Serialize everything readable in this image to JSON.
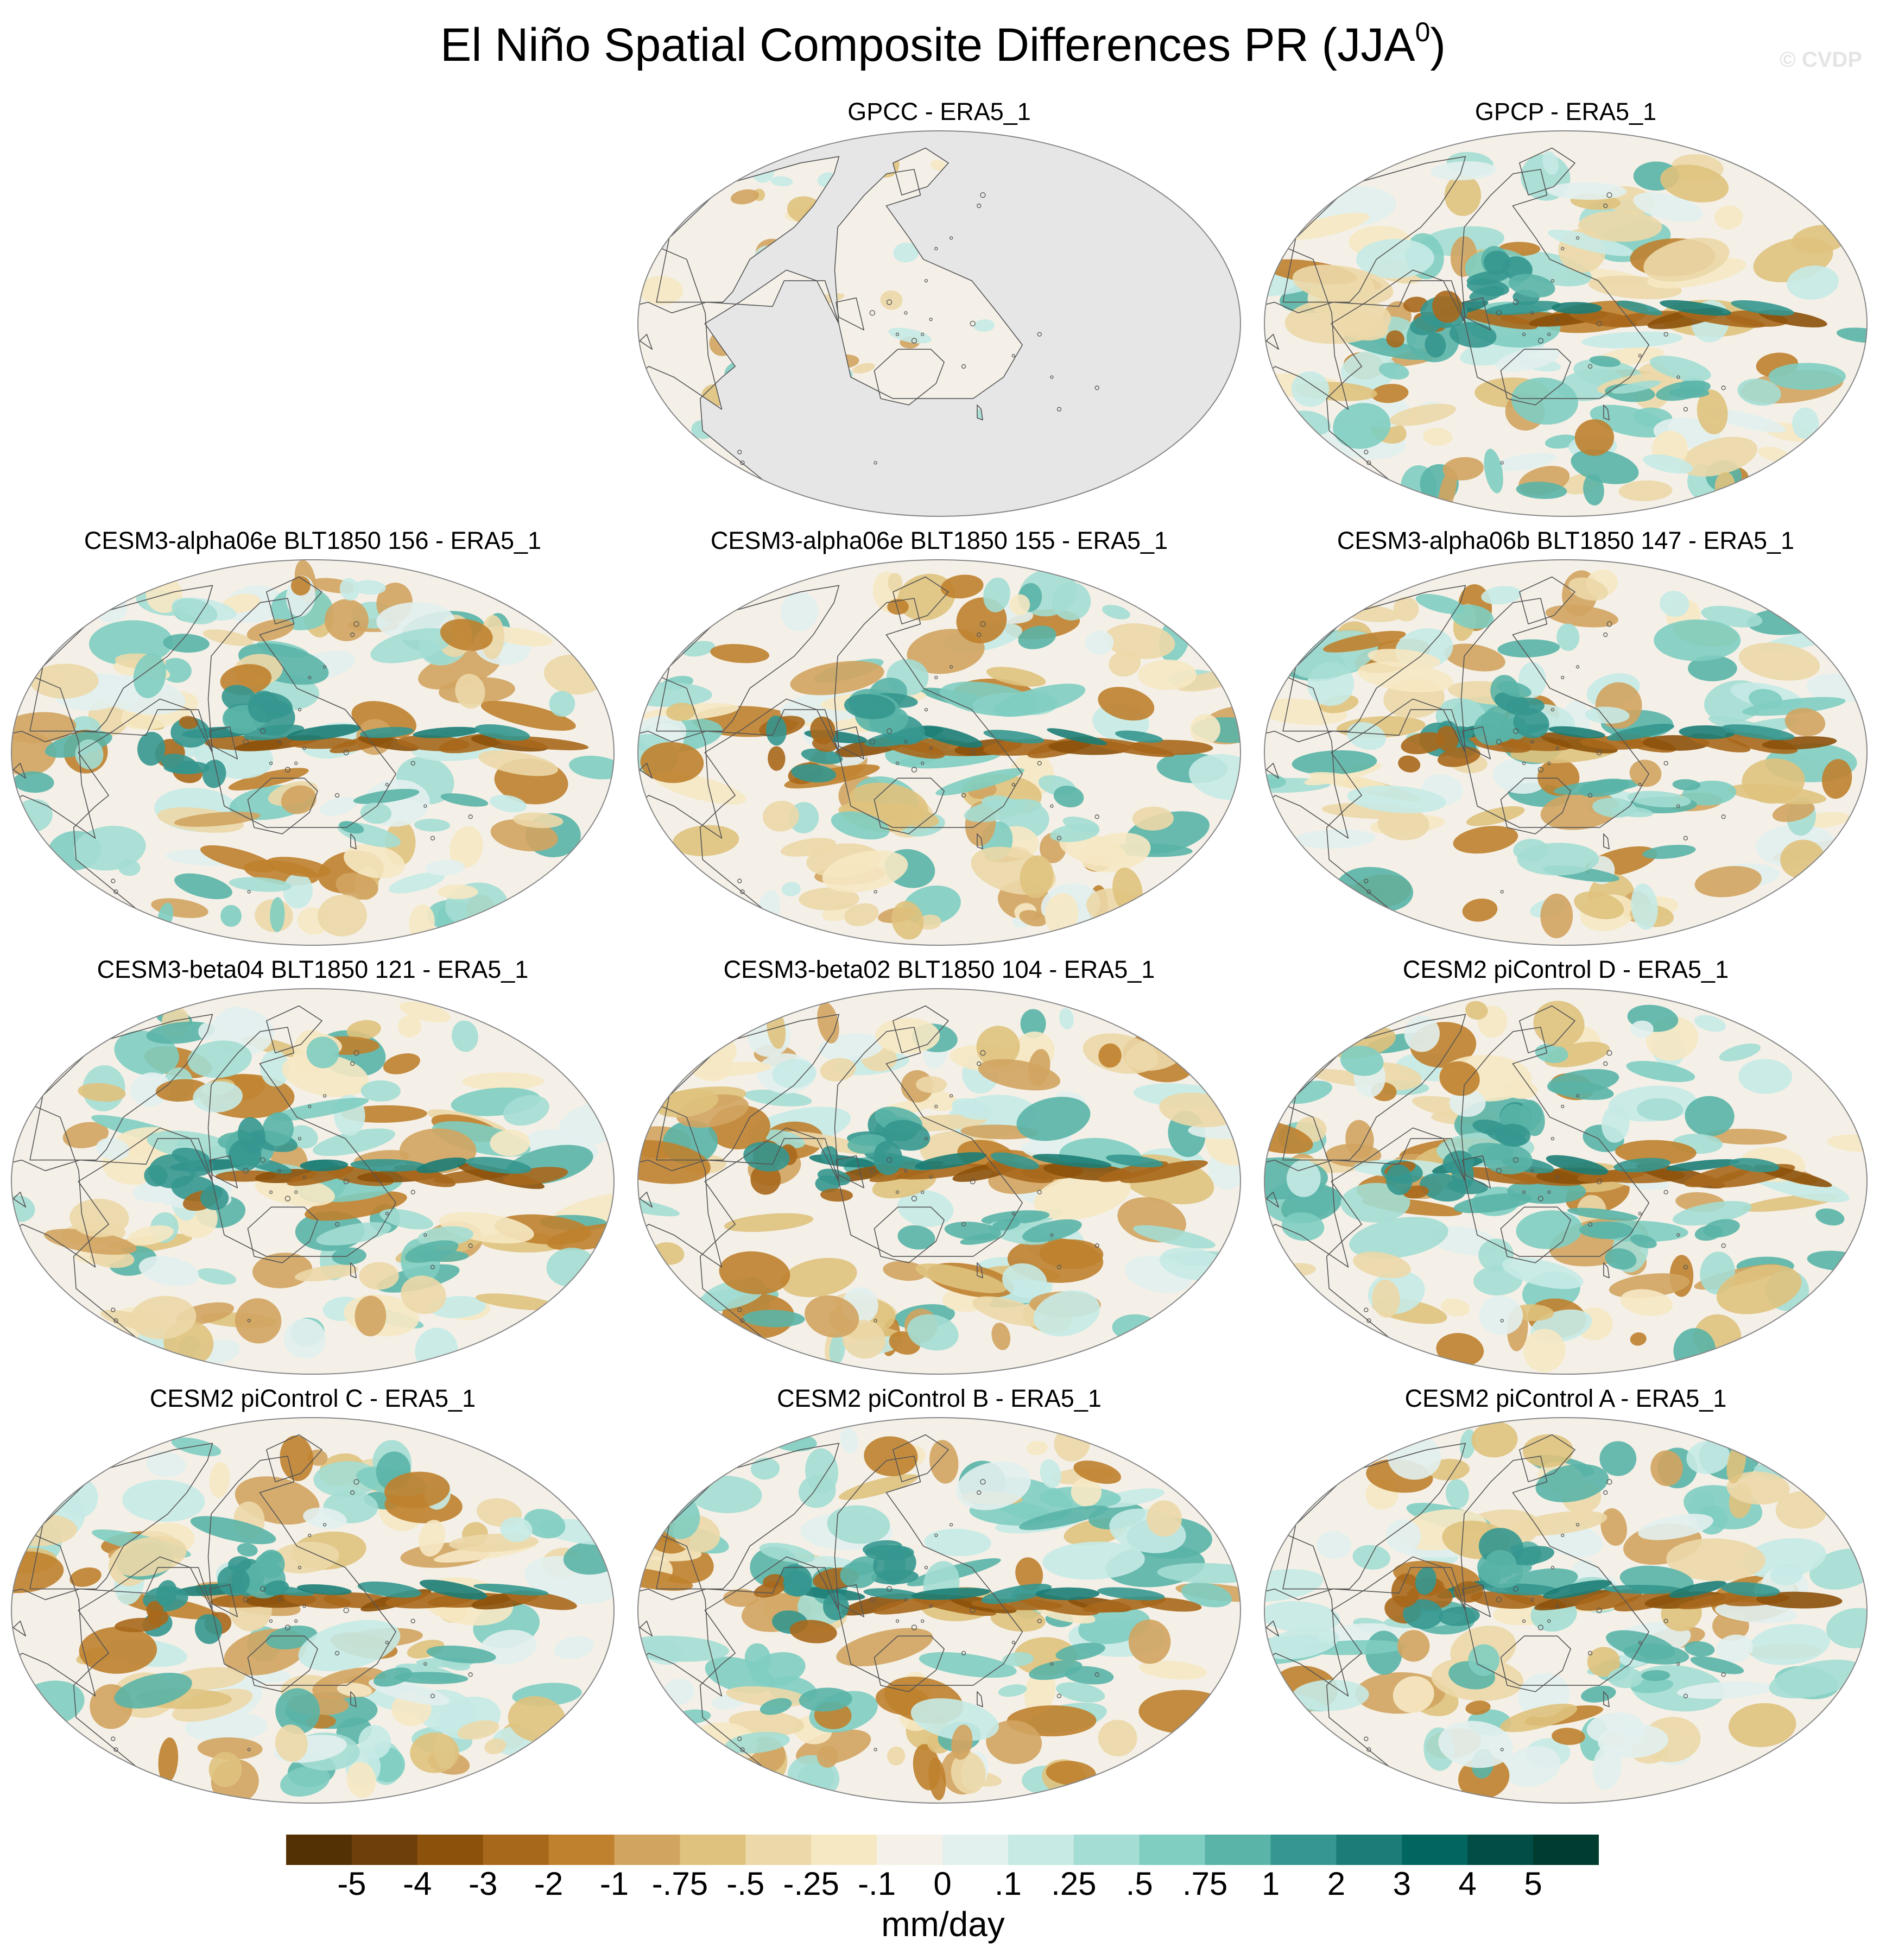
{
  "title": "El Niño Spatial Composite Differences PR (JJA",
  "title_superscript": "0",
  "title_suffix": ")",
  "watermark": "© CVDP",
  "units": "mm/day",
  "colors": {
    "land_mask": "#e6e6e6",
    "coastline": "#555555",
    "map_outline": "#888888",
    "ocean_neutral": "#f4f0e8"
  },
  "colorbar": {
    "colors": [
      "#543005",
      "#6f3f0b",
      "#8c510a",
      "#a8681c",
      "#bf812d",
      "#d1a460",
      "#dfc27d",
      "#ecd8a8",
      "#f6e8c3",
      "#f5f1e8",
      "#e2f0ee",
      "#c7eae5",
      "#a4ddd3",
      "#80cdc1",
      "#5ab4a7",
      "#35978f",
      "#1c7d76",
      "#01665e",
      "#024d46",
      "#003c30"
    ],
    "labels": [
      "-5",
      "-4",
      "-3",
      "-2",
      "-1",
      "-.75",
      "-.5",
      "-.25",
      "-.1",
      "0",
      ".1",
      ".25",
      ".5",
      ".75",
      "1",
      "2",
      "3",
      "4",
      "5"
    ]
  },
  "panels": [
    {
      "title": "GPCC - ERA5_1",
      "land_only": true
    },
    {
      "title": "GPCP - ERA5_1",
      "land_only": false
    },
    {
      "title": "CESM3-alpha06e BLT1850 156 - ERA5_1",
      "land_only": false
    },
    {
      "title": "CESM3-alpha06e BLT1850 155 - ERA5_1",
      "land_only": false
    },
    {
      "title": "CESM3-alpha06b BLT1850 147 - ERA5_1",
      "land_only": false
    },
    {
      "title": "CESM3-beta04 BLT1850 121 - ERA5_1",
      "land_only": false
    },
    {
      "title": "CESM3-beta02 BLT1850 104 - ERA5_1",
      "land_only": false
    },
    {
      "title": "CESM2 piControl D - ERA5_1",
      "land_only": false
    },
    {
      "title": "CESM2 piControl C - ERA5_1",
      "land_only": false
    },
    {
      "title": "CESM2 piControl B - ERA5_1",
      "land_only": false
    },
    {
      "title": "CESM2 piControl A - ERA5_1",
      "land_only": false
    }
  ]
}
